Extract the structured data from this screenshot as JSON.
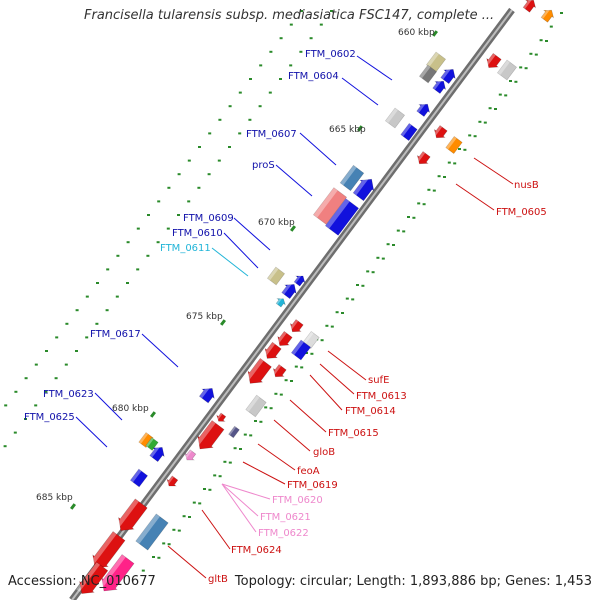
{
  "title": "Francisella tularensis subsp. mediasiatica FSC147, complete ...",
  "footer": {
    "accession": "Accession: NC_010677",
    "summary": "Topology: circular; Length: 1,893,886 bp; Genes: 1,453"
  },
  "colors": {
    "backbone": "#7a7a7a",
    "forward_label": "#1111aa",
    "reverse_label": "#cc1111",
    "cyan_label": "#22b5d8",
    "pink_label": "#ee88cc",
    "tick_dot": "#2a8a2a"
  },
  "kbp_labels": [
    "660 kbp",
    "665 kbp",
    "670 kbp",
    "675 kbp",
    "680 kbp",
    "685 kbp"
  ],
  "forward_genes": [
    {
      "label": "FTM_0602",
      "color": "blue"
    },
    {
      "label": "FTM_0604",
      "color": "blue"
    },
    {
      "label": "FTM_0607",
      "color": "blue"
    },
    {
      "label": "proS",
      "color": "blue"
    },
    {
      "label": "FTM_0609",
      "color": "blue"
    },
    {
      "label": "FTM_0610",
      "color": "blue"
    },
    {
      "label": "FTM_0611",
      "color": "cyan"
    },
    {
      "label": "FTM_0617",
      "color": "blue"
    },
    {
      "label": "FTM_0623",
      "color": "blue"
    },
    {
      "label": "FTM_0625",
      "color": "blue"
    }
  ],
  "reverse_genes": [
    {
      "label": "nusB",
      "color": "red"
    },
    {
      "label": "FTM_0605",
      "color": "red"
    },
    {
      "label": "sufE",
      "color": "red"
    },
    {
      "label": "FTM_0613",
      "color": "red"
    },
    {
      "label": "FTM_0614",
      "color": "red"
    },
    {
      "label": "FTM_0615",
      "color": "red"
    },
    {
      "label": "gloB",
      "color": "red"
    },
    {
      "label": "feoA",
      "color": "red"
    },
    {
      "label": "FTM_0619",
      "color": "red"
    },
    {
      "label": "FTM_0620",
      "color": "pink"
    },
    {
      "label": "FTM_0621",
      "color": "pink"
    },
    {
      "label": "FTM_0622",
      "color": "pink"
    },
    {
      "label": "FTM_0624",
      "color": "red"
    },
    {
      "label": "gltB",
      "color": "red"
    }
  ]
}
